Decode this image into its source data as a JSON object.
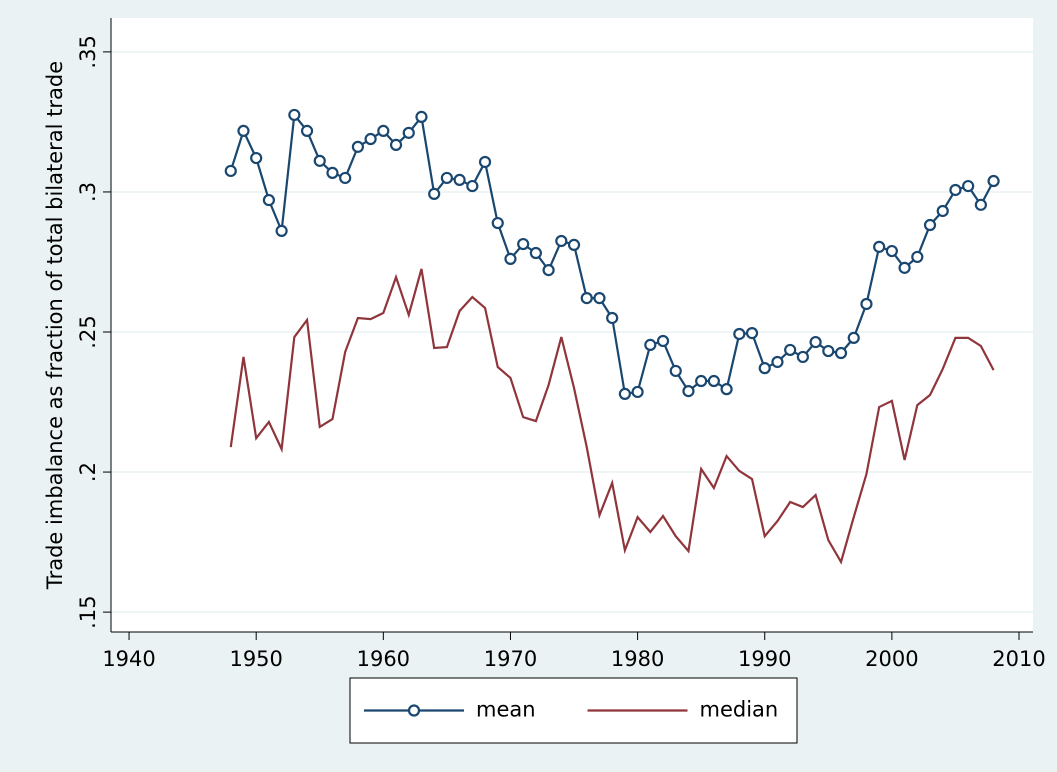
{
  "chart_data": {
    "type": "line",
    "y_label": "Trade imbalance as fraction of total bilateral trade",
    "x": [
      1948,
      1949,
      1950,
      1951,
      1952,
      1953,
      1954,
      1955,
      1956,
      1957,
      1958,
      1959,
      1960,
      1961,
      1962,
      1963,
      1964,
      1965,
      1966,
      1967,
      1968,
      1969,
      1970,
      1971,
      1972,
      1973,
      1974,
      1975,
      1976,
      1977,
      1978,
      1979,
      1980,
      1981,
      1982,
      1983,
      1984,
      1985,
      1986,
      1987,
      1988,
      1989,
      1990,
      1991,
      1992,
      1993,
      1994,
      1995,
      1996,
      1997,
      1998,
      1999,
      2000,
      2001,
      2002,
      2003,
      2004,
      2005,
      2006,
      2007,
      2008
    ],
    "series": [
      {
        "name": "mean",
        "color": "#1a476f",
        "marker": "circle",
        "values": [
          0.3075,
          0.3218,
          0.3121,
          0.2971,
          0.2861,
          0.3275,
          0.3218,
          0.3111,
          0.3068,
          0.305,
          0.3161,
          0.3189,
          0.3218,
          0.3168,
          0.3211,
          0.3268,
          0.2993,
          0.305,
          0.3043,
          0.3021,
          0.3107,
          0.2889,
          0.2761,
          0.2814,
          0.2782,
          0.2721,
          0.2825,
          0.2811,
          0.2621,
          0.2621,
          0.255,
          0.2279,
          0.2286,
          0.2454,
          0.2468,
          0.2361,
          0.2289,
          0.2325,
          0.2325,
          0.2296,
          0.2493,
          0.2496,
          0.2371,
          0.2393,
          0.2436,
          0.2411,
          0.2464,
          0.2432,
          0.2425,
          0.2479,
          0.26,
          0.2804,
          0.2789,
          0.2729,
          0.2768,
          0.2882,
          0.2932,
          0.3007,
          0.3021,
          0.2954,
          0.3039
        ]
      },
      {
        "name": "median",
        "color": "#90353b",
        "marker": "none",
        "values": [
          0.2089,
          0.2411,
          0.2121,
          0.2179,
          0.2082,
          0.2482,
          0.2543,
          0.2161,
          0.2189,
          0.2429,
          0.255,
          0.2546,
          0.2568,
          0.2696,
          0.2561,
          0.2725,
          0.2443,
          0.2446,
          0.2575,
          0.2625,
          0.2586,
          0.2375,
          0.2336,
          0.2196,
          0.2182,
          0.2311,
          0.2482,
          0.23,
          0.2089,
          0.1846,
          0.1961,
          0.1721,
          0.1839,
          0.1786,
          0.1843,
          0.1771,
          0.1718,
          0.2011,
          0.1943,
          0.2057,
          0.2004,
          0.1975,
          0.1771,
          0.1825,
          0.1893,
          0.1875,
          0.1918,
          0.1757,
          0.1679,
          0.1839,
          0.1993,
          0.2232,
          0.2254,
          0.2043,
          0.2239,
          0.2275,
          0.2368,
          0.2479,
          0.2479,
          0.245,
          0.2364
        ]
      }
    ],
    "xlim": [
      1938.58,
      2011.1
    ],
    "xticks": [
      1940,
      1950,
      1960,
      1970,
      1980,
      1990,
      2000,
      2010
    ],
    "ylim": [
      0.1429,
      0.3621
    ],
    "yticks": [
      {
        "value": 0.15,
        "label": ".15"
      },
      {
        "value": 0.2,
        "label": ".2"
      },
      {
        "value": 0.25,
        "label": ".25"
      },
      {
        "value": 0.3,
        "label": ".3"
      },
      {
        "value": 0.35,
        "label": ".35"
      }
    ],
    "grid": true,
    "legend": "bottom"
  }
}
